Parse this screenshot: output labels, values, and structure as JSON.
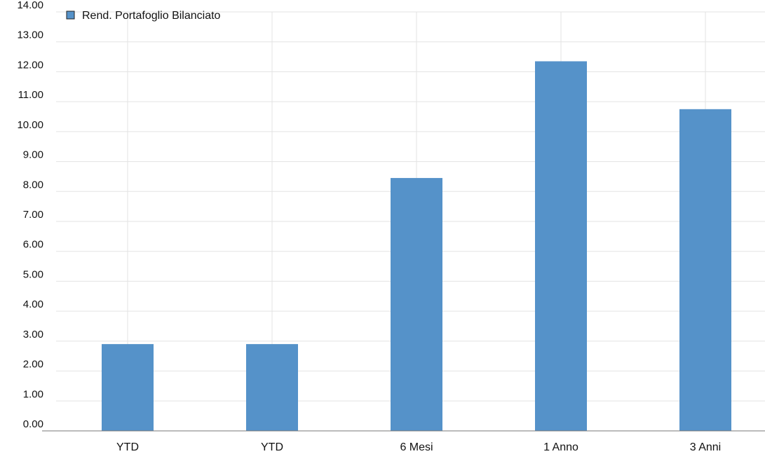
{
  "chart_data": {
    "type": "bar",
    "categories": [
      "YTD",
      "YTD",
      "6 Mesi",
      "1 Anno",
      "3 Anni"
    ],
    "series": [
      {
        "name": "Rend. Portafoglio Bilanciato",
        "values": [
          2.9,
          2.9,
          8.45,
          12.35,
          10.75
        ],
        "color": "#5592c9"
      }
    ],
    "y_ticks": [
      "0.00",
      "1.00",
      "2.00",
      "3.00",
      "4.00",
      "5.00",
      "6.00",
      "7.00",
      "8.00",
      "9.00",
      "10.00",
      "11.00",
      "12.00",
      "13.00",
      "14.00"
    ],
    "ylim": [
      0,
      14
    ],
    "grid": true,
    "legend_position": "top-left"
  }
}
